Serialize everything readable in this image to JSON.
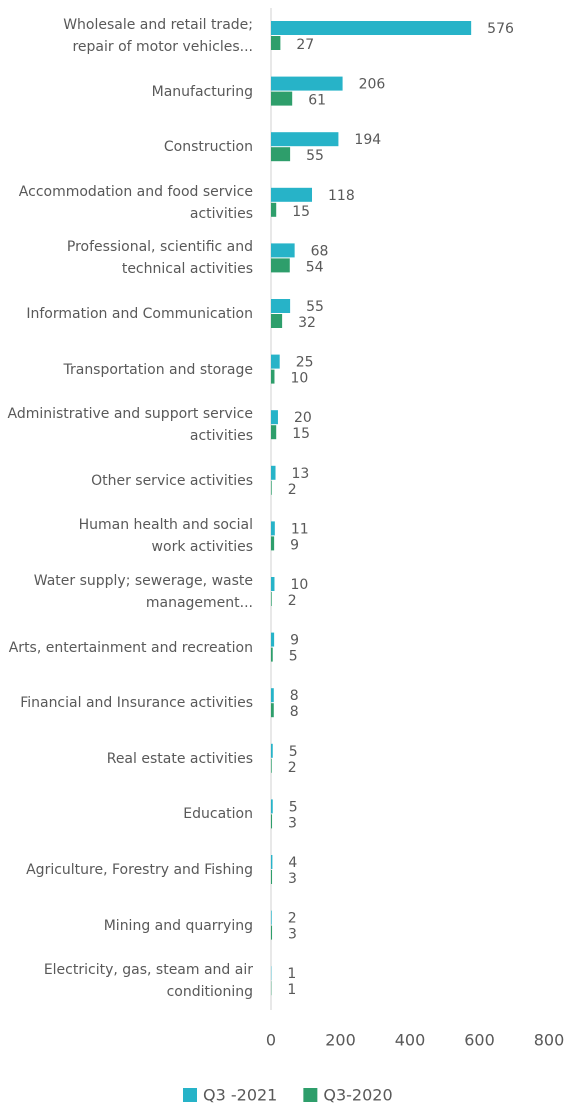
{
  "chart_data": {
    "type": "bar",
    "orientation": "horizontal",
    "categories": [
      "Wholesale and retail trade;\nrepair of motor vehicles...",
      "Manufacturing",
      "Construction",
      "Accommodation and food service\nactivities",
      "Professional, scientific and\ntechnical activities",
      "Information and Communication",
      "Transportation and storage",
      "Administrative and support service\nactivities",
      "Other service activities",
      "Human health and social\nwork activities",
      "Water supply; sewerage, waste\nmanagement...",
      "Arts, entertainment and recreation",
      "Financial and Insurance activities",
      "Real estate activities",
      "Education",
      "Agriculture, Forestry and Fishing",
      "Mining and quarrying",
      "Electricity, gas, steam and air\nconditioning"
    ],
    "series": [
      {
        "name": "Q3 -2021",
        "color": "#27b3c8",
        "values": [
          576,
          206,
          194,
          118,
          68,
          55,
          25,
          20,
          13,
          11,
          10,
          9,
          8,
          5,
          5,
          4,
          2,
          1
        ]
      },
      {
        "name": "Q3-2020",
        "color": "#2e9e6b",
        "values": [
          27,
          61,
          55,
          15,
          54,
          32,
          10,
          15,
          2,
          9,
          2,
          5,
          8,
          2,
          3,
          3,
          3,
          1
        ]
      }
    ],
    "xlim": [
      0,
      800
    ],
    "xticks": [
      0,
      200,
      400,
      600,
      800
    ],
    "legend": "bottom"
  }
}
